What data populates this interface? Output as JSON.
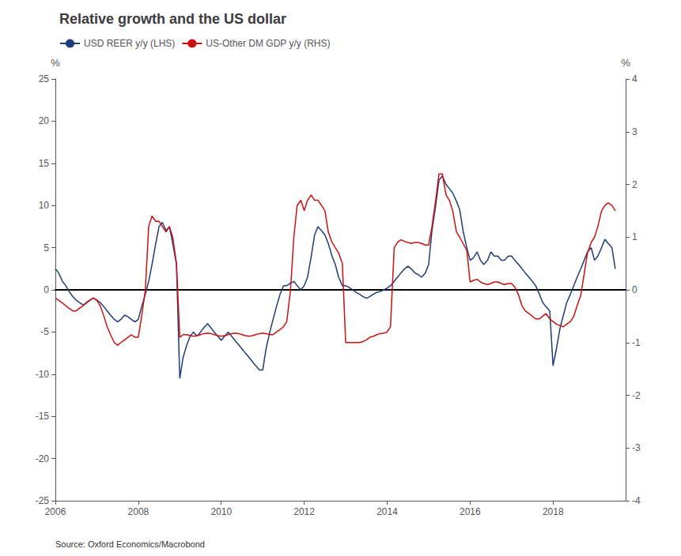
{
  "chart_data": {
    "type": "line",
    "title": "Relative growth and the US dollar",
    "annotations": [
      "Source: Oxford Economics/Macrobond"
    ],
    "ylabel": "%",
    "y2label": "%",
    "xlim": [
      2006,
      2019.75
    ],
    "xticks": [
      2006,
      2008,
      2010,
      2012,
      2014,
      2016,
      2018
    ],
    "ylim": [
      -25,
      25
    ],
    "yticks": [
      -25,
      -20,
      -15,
      -10,
      -5,
      0,
      5,
      10,
      15,
      20,
      25
    ],
    "y2lim": [
      -4,
      4
    ],
    "y2ticks": [
      -4,
      -3,
      -2,
      -1,
      0,
      1,
      2,
      3,
      4
    ],
    "grid": false,
    "legend": "upper left",
    "x": [
      2006.0,
      2006.08,
      2006.17,
      2006.25,
      2006.33,
      2006.42,
      2006.5,
      2006.58,
      2006.67,
      2006.75,
      2006.83,
      2006.92,
      2007.0,
      2007.08,
      2007.17,
      2007.25,
      2007.33,
      2007.42,
      2007.5,
      2007.58,
      2007.67,
      2007.75,
      2007.83,
      2007.92,
      2008.0,
      2008.08,
      2008.17,
      2008.25,
      2008.33,
      2008.42,
      2008.5,
      2008.58,
      2008.67,
      2008.75,
      2008.83,
      2008.92,
      2009.0,
      2009.08,
      2009.17,
      2009.25,
      2009.33,
      2009.42,
      2009.5,
      2009.58,
      2009.67,
      2009.75,
      2009.83,
      2009.92,
      2010.0,
      2010.08,
      2010.17,
      2010.25,
      2010.33,
      2010.42,
      2010.5,
      2010.58,
      2010.67,
      2010.75,
      2010.83,
      2010.92,
      2011.0,
      2011.08,
      2011.17,
      2011.25,
      2011.33,
      2011.42,
      2011.5,
      2011.58,
      2011.67,
      2011.75,
      2011.83,
      2011.92,
      2012.0,
      2012.08,
      2012.17,
      2012.25,
      2012.33,
      2012.42,
      2012.5,
      2012.58,
      2012.67,
      2012.75,
      2012.83,
      2012.92,
      2013.0,
      2013.08,
      2013.17,
      2013.25,
      2013.33,
      2013.42,
      2013.5,
      2013.58,
      2013.67,
      2013.75,
      2013.83,
      2013.92,
      2014.0,
      2014.08,
      2014.17,
      2014.25,
      2014.33,
      2014.42,
      2014.5,
      2014.58,
      2014.67,
      2014.75,
      2014.83,
      2014.92,
      2015.0,
      2015.08,
      2015.17,
      2015.25,
      2015.33,
      2015.42,
      2015.5,
      2015.58,
      2015.67,
      2015.75,
      2015.83,
      2015.92,
      2016.0,
      2016.08,
      2016.17,
      2016.25,
      2016.33,
      2016.42,
      2016.5,
      2016.58,
      2016.67,
      2016.75,
      2016.83,
      2016.92,
      2017.0,
      2017.08,
      2017.17,
      2017.25,
      2017.33,
      2017.42,
      2017.5,
      2017.58,
      2017.67,
      2017.75,
      2017.83,
      2017.92,
      2018.0,
      2018.08,
      2018.17,
      2018.25,
      2018.33,
      2018.42,
      2018.5,
      2018.58,
      2018.67,
      2018.75,
      2018.83,
      2018.92,
      2019.0,
      2019.08,
      2019.17,
      2019.25,
      2019.33,
      2019.42,
      2019.5
    ],
    "series": [
      {
        "name": "USD REER y/y (LHS)",
        "color": "#1f3d7a",
        "values": [
          2.5,
          2.0,
          1.0,
          0.5,
          -0.2,
          -0.8,
          -1.2,
          -1.5,
          -1.8,
          -1.5,
          -1.2,
          -1.0,
          -1.2,
          -1.5,
          -2.0,
          -2.5,
          -3.0,
          -3.5,
          -3.8,
          -3.5,
          -3.0,
          -3.2,
          -3.5,
          -3.8,
          -3.5,
          -2.0,
          -0.5,
          1.0,
          3.0,
          5.5,
          7.5,
          8.0,
          7.0,
          7.5,
          5.5,
          3.0,
          -10.5,
          -8.0,
          -6.5,
          -5.5,
          -5.0,
          -5.5,
          -5.0,
          -4.5,
          -4.0,
          -4.5,
          -5.0,
          -5.5,
          -6.0,
          -5.5,
          -5.0,
          -5.5,
          -6.0,
          -6.5,
          -7.0,
          -7.5,
          -8.0,
          -8.5,
          -9.0,
          -9.5,
          -9.5,
          -7.0,
          -5.0,
          -3.5,
          -2.0,
          -0.5,
          0.5,
          0.5,
          0.8,
          1.0,
          0.5,
          0.0,
          0.5,
          1.5,
          4.0,
          6.5,
          7.5,
          7.0,
          6.5,
          5.5,
          4.0,
          3.0,
          1.5,
          0.5,
          0.5,
          0.3,
          0.0,
          -0.3,
          -0.5,
          -0.8,
          -1.0,
          -0.8,
          -0.5,
          -0.3,
          -0.2,
          0.0,
          0.2,
          0.5,
          1.0,
          1.5,
          2.0,
          2.5,
          2.8,
          2.5,
          2.0,
          1.8,
          1.5,
          2.0,
          3.0,
          7.0,
          10.0,
          13.0,
          13.5,
          12.5,
          12.0,
          11.5,
          10.5,
          9.5,
          7.0,
          5.0,
          3.5,
          3.8,
          4.5,
          3.5,
          3.0,
          3.5,
          4.5,
          4.0,
          4.0,
          3.5,
          3.5,
          4.0,
          4.0,
          3.5,
          3.0,
          2.5,
          2.0,
          1.5,
          1.0,
          0.5,
          -0.5,
          -1.5,
          -2.0,
          -2.5,
          -9.0,
          -7.0,
          -4.5,
          -3.0,
          -1.5,
          -0.5,
          0.5,
          1.5,
          2.5,
          3.5,
          4.5,
          5.0,
          3.5,
          4.0,
          5.0,
          6.0,
          5.5,
          5.0,
          2.5
        ]
      },
      {
        "name": "US-Other DM GDP y/y (RHS)",
        "color": "#cc1111",
        "axis": "y2",
        "values": [
          -0.15,
          -0.2,
          -0.25,
          -0.3,
          -0.35,
          -0.4,
          -0.4,
          -0.35,
          -0.3,
          -0.25,
          -0.2,
          -0.15,
          -0.2,
          -0.3,
          -0.5,
          -0.7,
          -0.85,
          -1.0,
          -1.05,
          -1.0,
          -0.95,
          -0.9,
          -0.85,
          -0.9,
          -0.9,
          -0.5,
          0.0,
          1.2,
          1.4,
          1.3,
          1.3,
          1.2,
          1.1,
          1.2,
          1.0,
          0.5,
          -0.9,
          -0.85,
          -0.85,
          -0.87,
          -0.88,
          -0.87,
          -0.85,
          -0.83,
          -0.82,
          -0.83,
          -0.85,
          -0.87,
          -0.88,
          -0.87,
          -0.85,
          -0.83,
          -0.82,
          -0.83,
          -0.85,
          -0.87,
          -0.88,
          -0.87,
          -0.85,
          -0.83,
          -0.82,
          -0.83,
          -0.85,
          -0.85,
          -0.8,
          -0.75,
          -0.7,
          -0.6,
          0.0,
          1.0,
          1.6,
          1.7,
          1.5,
          1.7,
          1.8,
          1.7,
          1.7,
          1.6,
          1.5,
          1.1,
          0.9,
          0.8,
          0.7,
          0.5,
          -1.0,
          -1.0,
          -1.0,
          -1.0,
          -1.0,
          -0.98,
          -0.95,
          -0.9,
          -0.88,
          -0.85,
          -0.83,
          -0.82,
          -0.8,
          -0.7,
          0.8,
          0.9,
          0.95,
          0.92,
          0.9,
          0.88,
          0.9,
          0.9,
          0.88,
          0.85,
          0.85,
          1.2,
          1.7,
          2.2,
          2.2,
          1.8,
          1.7,
          1.5,
          1.1,
          1.0,
          0.88,
          0.75,
          0.15,
          0.18,
          0.2,
          0.15,
          0.12,
          0.1,
          0.12,
          0.15,
          0.15,
          0.12,
          0.1,
          0.12,
          0.12,
          0.05,
          -0.1,
          -0.3,
          -0.4,
          -0.45,
          -0.5,
          -0.55,
          -0.55,
          -0.5,
          -0.45,
          -0.55,
          -0.6,
          -0.65,
          -0.68,
          -0.7,
          -0.65,
          -0.6,
          -0.5,
          -0.3,
          -0.1,
          0.3,
          0.7,
          0.9,
          1.0,
          1.2,
          1.5,
          1.6,
          1.65,
          1.6,
          1.5
        ]
      }
    ]
  }
}
